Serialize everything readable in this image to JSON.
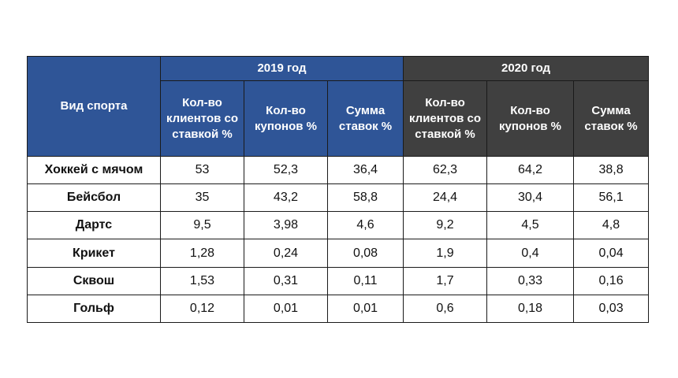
{
  "table": {
    "sport_header": "Вид спорта",
    "years": [
      "2019 год",
      "2020 год"
    ],
    "subheaders": [
      "Кол-во клиентов со ставкой %",
      "Кол-во купонов %",
      "Сумма ставок %"
    ],
    "rows": [
      {
        "sport": "Хоккей с мячом",
        "values": [
          "53",
          "52,3",
          "36,4",
          "62,3",
          "64,2",
          "38,8"
        ]
      },
      {
        "sport": "Бейсбол",
        "values": [
          "35",
          "43,2",
          "58,8",
          "24,4",
          "30,4",
          "56,1"
        ]
      },
      {
        "sport": "Дартс",
        "values": [
          "9,5",
          "3,98",
          "4,6",
          "9,2",
          "4,5",
          "4,8"
        ]
      },
      {
        "sport": "Крикет",
        "values": [
          "1,28",
          "0,24",
          "0,08",
          "1,9",
          "0,4",
          "0,04"
        ]
      },
      {
        "sport": "Сквош",
        "values": [
          "1,53",
          "0,31",
          "0,11",
          "1,7",
          "0,33",
          "0,16"
        ]
      },
      {
        "sport": "Гольф",
        "values": [
          "0,12",
          "0,01",
          "0,01",
          "0,6",
          "0,18",
          "0,03"
        ]
      }
    ]
  },
  "colors": {
    "header_2019": "#2f5597",
    "header_2020": "#404040",
    "border": "#1a1a1a"
  }
}
